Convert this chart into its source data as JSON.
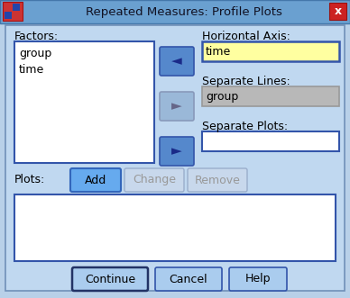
{
  "title": "Repeated Measures: Profile Plots",
  "bg_color": "#b8d0e8",
  "titlebar_color": "#6aa0d0",
  "titlebar_text_color": "#111122",
  "close_btn_color": "#cc2222",
  "factors_label": "Factors:",
  "factors_items": [
    "group",
    "time"
  ],
  "haxis_label": "Horizontal Axis:",
  "haxis_value": "time",
  "haxis_bg": "#ffffa0",
  "sep_lines_label": "Separate Lines:",
  "sep_lines_value": "group",
  "sep_lines_bg": "#b8b8b8",
  "sep_plots_label": "Separate Plots:",
  "sep_plots_value": "",
  "sep_plots_bg": "#ffffff",
  "plots_label": "Plots:",
  "btn_add": "Add",
  "btn_change": "Change",
  "btn_remove": "Remove",
  "btn_continue": "Continue",
  "btn_cancel": "Cancel",
  "btn_help": "Help",
  "arrow_btn_active": "#5588cc",
  "arrow_btn_inactive": "#9ab8d8",
  "box_border_active": "#3355aa",
  "box_border_inactive": "#8899bb",
  "listbox_bg": "#ffffff",
  "dialog_bg": "#c0d8f0",
  "inner_border": "#7090b8"
}
